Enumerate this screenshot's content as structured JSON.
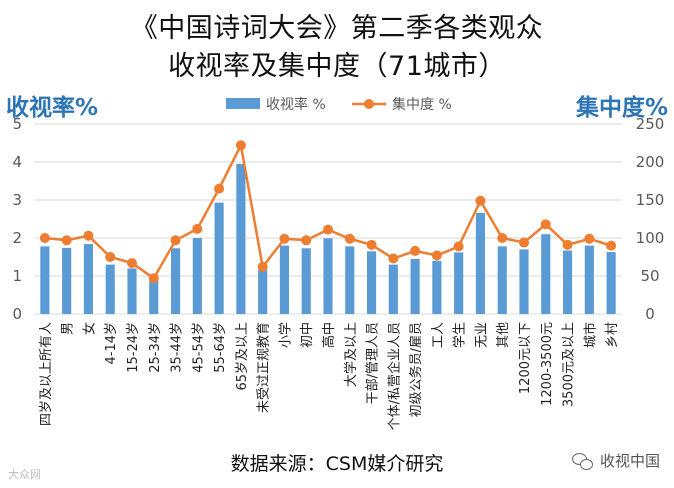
{
  "title_line1": "《中国诗词大会》第二季各类观众",
  "title_line2": "收视率及集中度（71城市）",
  "left_axis_title": "收视率%",
  "right_axis_title": "集中度%",
  "source": "数据来源：CSM媒介研究",
  "watermark_left": "大众网",
  "watermark_right": "收视中国",
  "chart_data": {
    "type": "bar",
    "categories": [
      "四岁及以上所有人",
      "男",
      "女",
      "4-14岁",
      "15-24岁",
      "25-34岁",
      "35-44岁",
      "45-54岁",
      "55-64岁",
      "65岁及以上",
      "未受过正规教育",
      "小学",
      "初中",
      "高中",
      "大学及以上",
      "干部/管理人员",
      "个体/私营企业人员",
      "初级公务员/雇员",
      "工人",
      "学生",
      "无业",
      "其他",
      "1200元以下",
      "1200-3500元",
      "3500元及以上",
      "城市",
      "乡村"
    ],
    "series": [
      {
        "name": "收视率 %",
        "type": "bar",
        "axis": "left",
        "color": "#5b9bd5",
        "values": [
          1.78,
          1.74,
          1.84,
          1.3,
          1.2,
          0.88,
          1.73,
          2.0,
          2.93,
          3.95,
          1.17,
          1.8,
          1.73,
          1.99,
          1.78,
          1.65,
          1.3,
          1.45,
          1.4,
          1.62,
          2.66,
          1.78,
          1.7,
          2.1,
          1.67,
          1.8,
          1.63
        ]
      },
      {
        "name": "集中度 %",
        "type": "line",
        "axis": "right",
        "color": "#ed7d31",
        "values": [
          100,
          97,
          103,
          75,
          67,
          47,
          97,
          112,
          165,
          222,
          62,
          99,
          97,
          111,
          99,
          91,
          73,
          83,
          77,
          89,
          149,
          100,
          94,
          118,
          91,
          99,
          90
        ]
      }
    ],
    "y_left": {
      "min": 0,
      "max": 5,
      "ticks": [
        0,
        1,
        2,
        3,
        4,
        5
      ]
    },
    "y_right": {
      "min": 0,
      "max": 250,
      "ticks": [
        0,
        50,
        100,
        150,
        200,
        250
      ]
    },
    "legend_position": "top-center",
    "grid": true
  }
}
